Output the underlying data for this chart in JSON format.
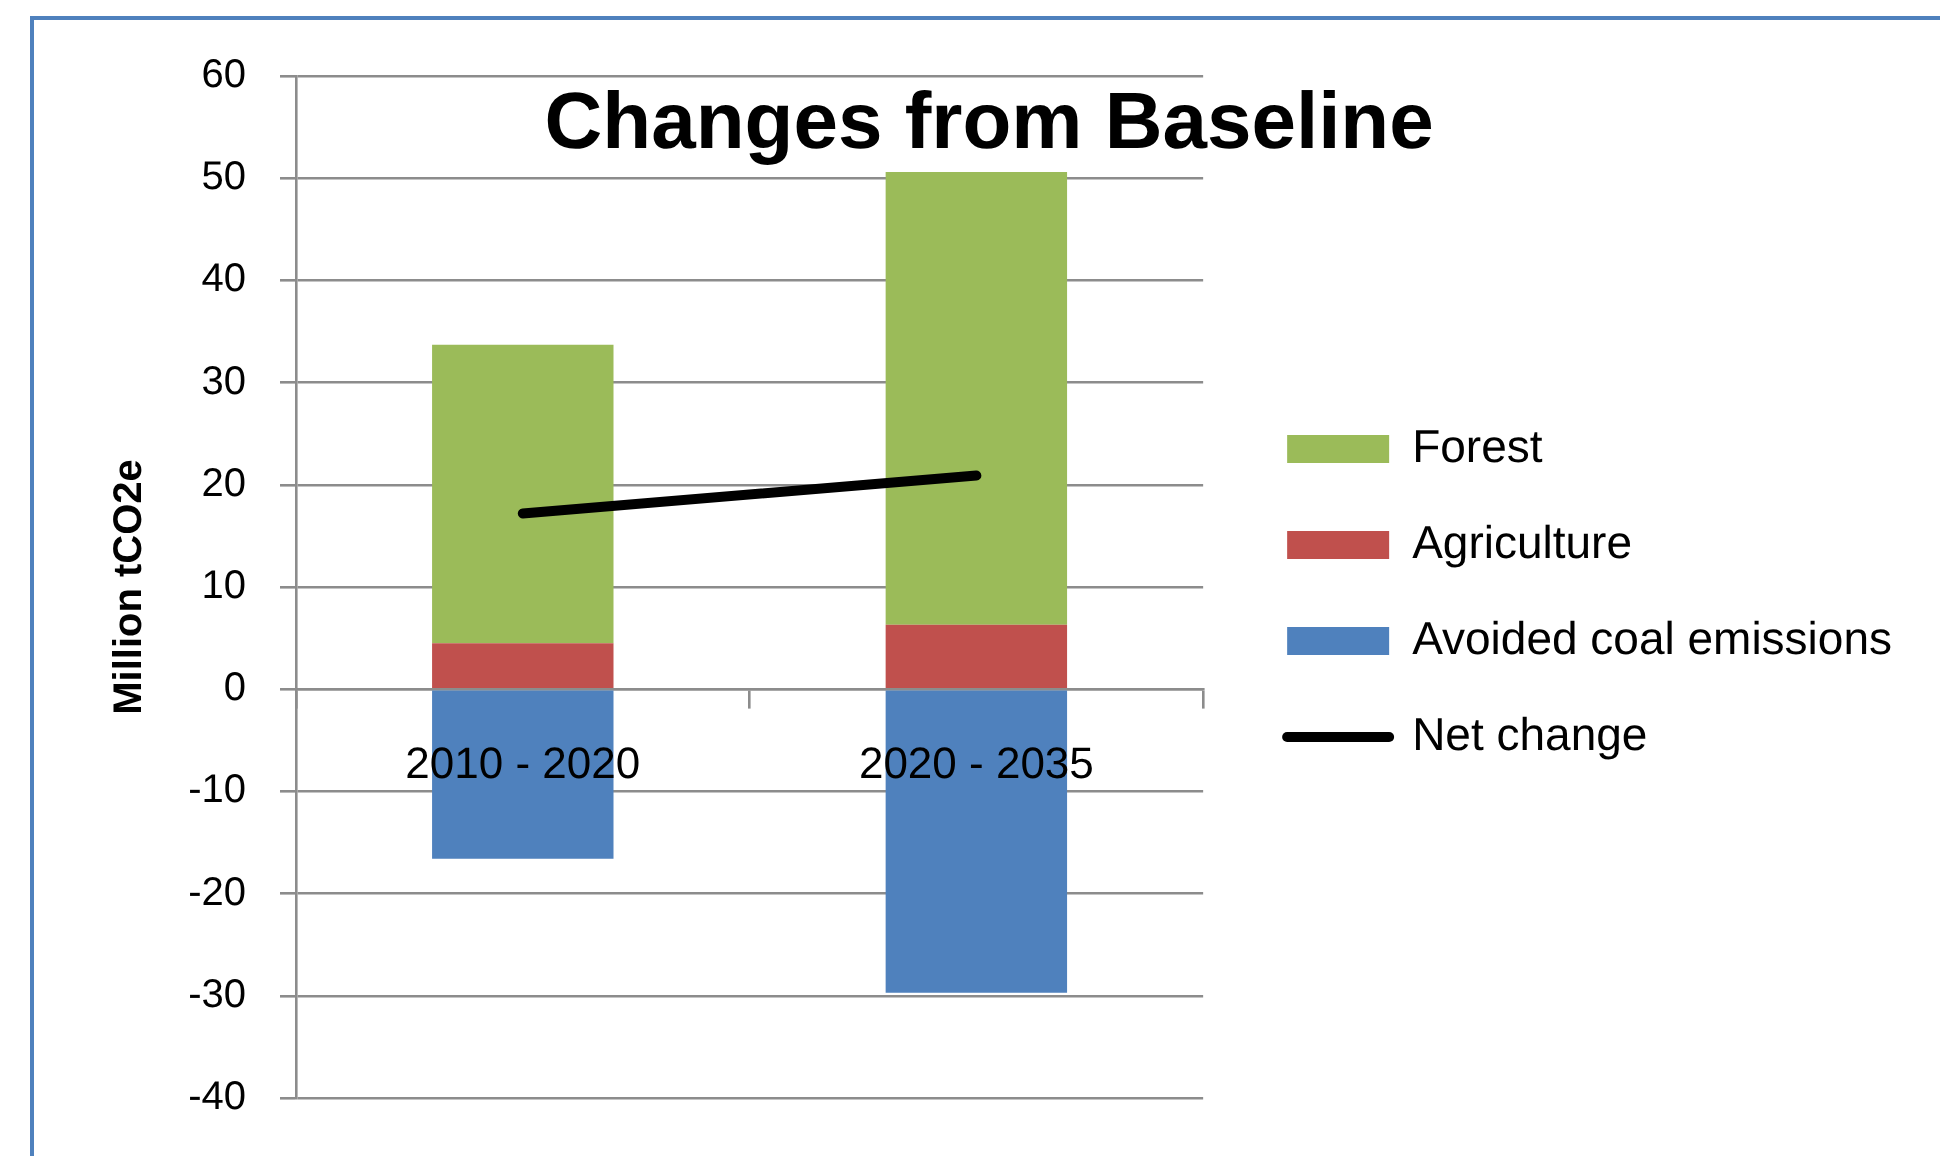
{
  "chart_data": {
    "type": "bar",
    "title": "Changes from Baseline",
    "ylabel": "Million tCO2e",
    "categories": [
      "2010 - 2020",
      "2020 - 2035"
    ],
    "series": [
      {
        "name": "Avoided coal emissions",
        "color": "#4f81bd",
        "values": [
          -16.6,
          -29.7
        ]
      },
      {
        "name": "Agriculture",
        "color": "#c0504d",
        "values": [
          4.5,
          6.3
        ]
      },
      {
        "name": "Forest",
        "color": "#9bbb59",
        "values": [
          29.2,
          44.3
        ]
      },
      {
        "name": "Net change",
        "type": "line",
        "color": "#000000",
        "values": [
          17.2,
          20.9
        ]
      }
    ],
    "stacked": true,
    "ylim": [
      -40,
      60
    ],
    "yticks": [
      -40,
      -30,
      -20,
      -10,
      0,
      10,
      20,
      30,
      40,
      50,
      60
    ],
    "grid": "y",
    "legend": "right"
  }
}
